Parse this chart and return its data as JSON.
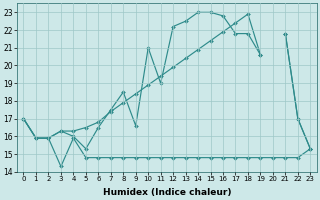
{
  "xlabel": "Humidex (Indice chaleur)",
  "x": [
    0,
    1,
    2,
    3,
    4,
    5,
    6,
    7,
    8,
    9,
    10,
    11,
    12,
    13,
    14,
    15,
    16,
    17,
    18,
    19,
    20,
    21,
    22,
    23
  ],
  "line_top": [
    17.0,
    15.9,
    15.9,
    16.3,
    16.0,
    15.3,
    16.5,
    17.5,
    18.5,
    16.6,
    21.0,
    19.0,
    22.2,
    22.5,
    23.0,
    23.0,
    22.8,
    21.8,
    21.8,
    20.6,
    null,
    21.8,
    17.0,
    15.3
  ],
  "line_mid": [
    17.0,
    15.9,
    15.9,
    16.3,
    16.3,
    16.5,
    16.8,
    17.4,
    17.9,
    18.4,
    18.9,
    19.4,
    19.9,
    20.4,
    20.9,
    21.4,
    21.9,
    22.4,
    22.9,
    20.6,
    null,
    21.8,
    17.0,
    15.3
  ],
  "line_bot": [
    17.0,
    15.9,
    15.9,
    14.3,
    15.9,
    14.8,
    14.8,
    14.8,
    14.8,
    14.8,
    14.8,
    14.8,
    14.8,
    14.8,
    14.8,
    14.8,
    14.8,
    14.8,
    14.8,
    14.8,
    14.8,
    14.8,
    14.8,
    15.3
  ],
  "ylim": [
    14,
    23.5
  ],
  "yticks": [
    14,
    15,
    16,
    17,
    18,
    19,
    20,
    21,
    22,
    23
  ],
  "line_color": "#2e8b8b",
  "bg_color": "#cde8e8",
  "grid_color": "#9fc8c8"
}
